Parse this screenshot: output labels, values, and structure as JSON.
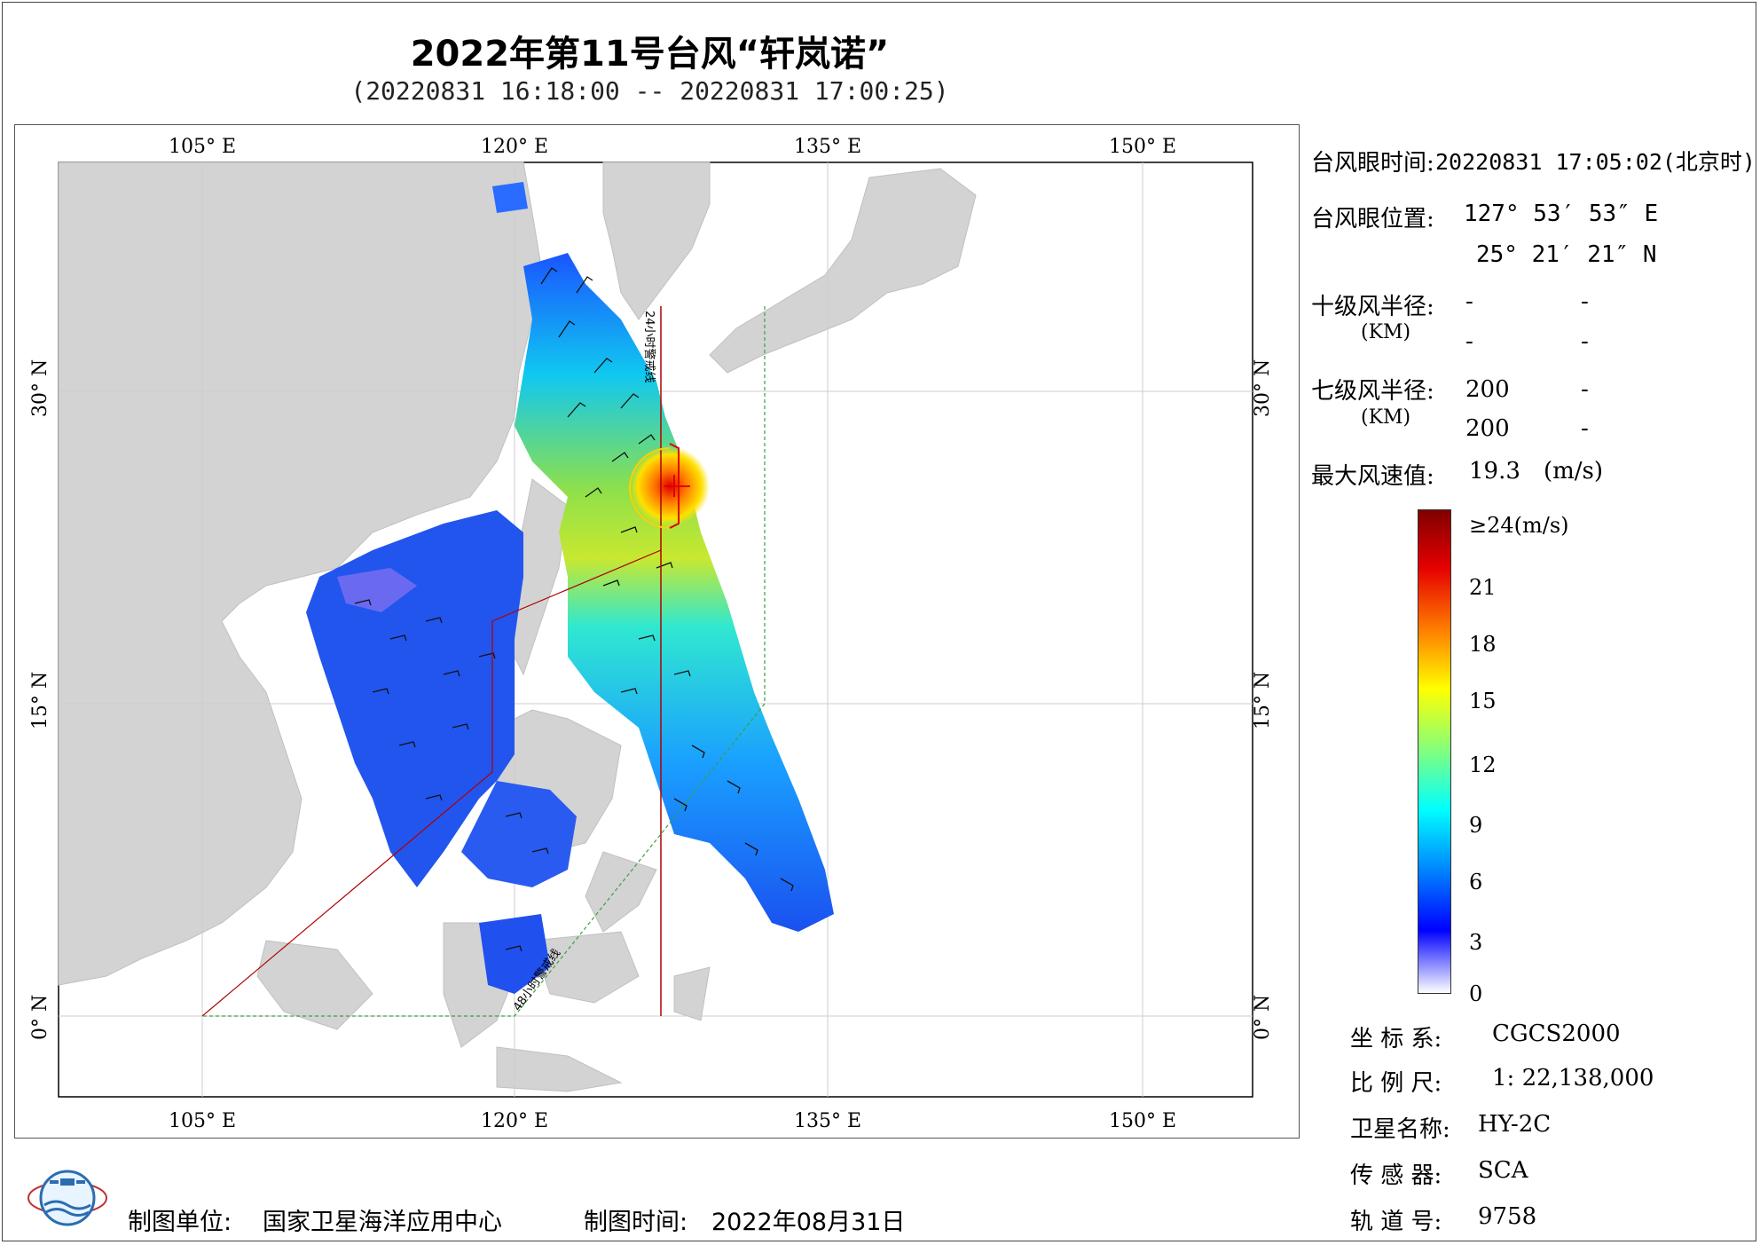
{
  "title": "2022年第11号台风“轩岚诺”",
  "subtitle": "(20220831 16:18:00 -- 20220831 17:00:25)",
  "map": {
    "lon_ticks": [
      "105° E",
      "120° E",
      "135° E",
      "150° E"
    ],
    "lat_ticks": [
      "30° N",
      "15° N",
      "0° N"
    ],
    "warning_24h": "24小时警戒线",
    "warning_48h": "48小时警戒线",
    "land_color": "#d3d3d3",
    "sea_color": "#ffffff"
  },
  "info": {
    "eye_time_label": "台风眼时间:",
    "eye_time_value": "20220831 17:05:02(北京时)",
    "eye_pos_label": "台风眼位置:",
    "eye_lon": "127° 53′ 53″ E",
    "eye_lat": "25° 21′ 21″ N",
    "r10_label": "十级风半径:",
    "r10_unit": "(KM)",
    "r10_values": [
      "-",
      "-",
      "-",
      "-"
    ],
    "r7_label": "七级风半径:",
    "r7_unit": "(KM)",
    "r7_values": [
      "200",
      "-",
      "200",
      "-"
    ],
    "max_wind_label": "最大风速值:",
    "max_wind_value": "19.3",
    "max_wind_unit": "(m/s)"
  },
  "colorbar": {
    "labels": [
      "≥24(m/s)",
      "21",
      "18",
      "15",
      "12",
      "9",
      "6",
      "3",
      "0"
    ],
    "colors": [
      "#800000",
      "#e60000",
      "#ff8000",
      "#ffff00",
      "#80ff80",
      "#00ffff",
      "#0080ff",
      "#0000ff",
      "#ffffff"
    ]
  },
  "meta": {
    "crs_label": "坐 标 系:",
    "crs_value": "CGCS2000",
    "scale_label": "比 例 尺:",
    "scale_value": "1: 22,138,000",
    "satellite_label": "卫星名称:",
    "satellite_value": "HY-2C",
    "sensor_label": "传 感 器:",
    "sensor_value": "SCA",
    "orbit_label": "轨 道 号:",
    "orbit_value": "9758"
  },
  "footer": {
    "unit_label": "制图单位:",
    "unit_value": "国家卫星海洋应用中心",
    "time_label": "制图时间:",
    "time_value": "2022年08月31日"
  }
}
